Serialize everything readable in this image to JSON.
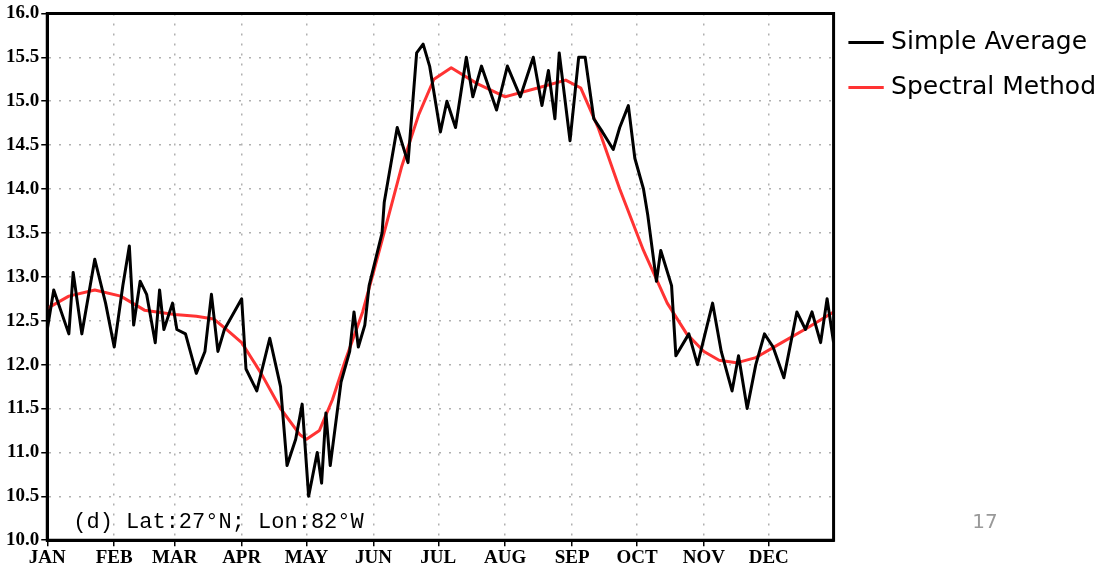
{
  "chart_data": {
    "type": "line",
    "xlim": [
      "--01-01",
      "--12-31"
    ],
    "xticks": [
      {
        "value": "--01-01",
        "label": "JAN"
      },
      {
        "value": "--02-01",
        "label": "FEB"
      },
      {
        "value": "--03-01",
        "label": "MAR"
      },
      {
        "value": "--04-01",
        "label": "APR"
      },
      {
        "value": "--05-01",
        "label": "MAY"
      },
      {
        "value": "--06-01",
        "label": "JUN"
      },
      {
        "value": "--07-01",
        "label": "JUL"
      },
      {
        "value": "--08-01",
        "label": "AUG"
      },
      {
        "value": "--09-01",
        "label": "SEP"
      },
      {
        "value": "--10-01",
        "label": "OCT"
      },
      {
        "value": "--11-01",
        "label": "NOV"
      },
      {
        "value": "--12-01",
        "label": "DEC"
      }
    ],
    "ylim": [
      10,
      16
    ],
    "yticks": [
      {
        "value": 10,
        "label": "10.0"
      },
      {
        "value": 10.5,
        "label": "10.5"
      },
      {
        "value": 11,
        "label": "11.0"
      },
      {
        "value": 11.5,
        "label": "11.5"
      },
      {
        "value": 12,
        "label": "12.0"
      },
      {
        "value": 12.5,
        "label": "12.5"
      },
      {
        "value": 13,
        "label": "13.0"
      },
      {
        "value": 13.5,
        "label": "13.5"
      },
      {
        "value": 14,
        "label": "14.0"
      },
      {
        "value": 14.5,
        "label": "14.5"
      },
      {
        "value": 15,
        "label": "15.0"
      },
      {
        "value": 15.5,
        "label": "15.5"
      },
      {
        "value": 16,
        "label": "16.0"
      }
    ],
    "grid": true,
    "legend": "right",
    "marker": "none",
    "line_style": "solid",
    "annotations": [
      "(d) Lat:27°N; Lon:82°W",
      "17"
    ],
    "series": [
      {
        "name": "Simple Average",
        "color": "#000000",
        "x": [
          "--01-01",
          "--01-04",
          "--01-11",
          "--01-13",
          "--01-17",
          "--01-23",
          "--01-28",
          "--02-01",
          "--02-05",
          "--02-08",
          "--02-10",
          "--02-13",
          "--02-16",
          "--02-20",
          "--02-22",
          "--02-24",
          "--02-28",
          "--03-02",
          "--03-06",
          "--03-11",
          "--03-15",
          "--03-18",
          "--03-21",
          "--03-24",
          "--04-01",
          "--04-03",
          "--04-08",
          "--04-14",
          "--04-19",
          "--04-22",
          "--04-26",
          "--04-29",
          "--05-02",
          "--05-06",
          "--05-08",
          "--05-10",
          "--05-12",
          "--05-17",
          "--05-21",
          "--05-23",
          "--05-25",
          "--05-28",
          "--05-30",
          "--06-05",
          "--06-06",
          "--06-12",
          "--06-17",
          "--06-21",
          "--06-24",
          "--06-27",
          "--07-02",
          "--07-05",
          "--07-09",
          "--07-14",
          "--07-17",
          "--07-21",
          "--07-28",
          "--08-02",
          "--08-08",
          "--08-14",
          "--08-18",
          "--08-21",
          "--08-24",
          "--08-26",
          "--08-31",
          "--09-04",
          "--09-07",
          "--09-11",
          "--09-15",
          "--09-20",
          "--09-23",
          "--09-27",
          "--09-30",
          "--10-04",
          "--10-06",
          "--10-10",
          "--10-12",
          "--10-17",
          "--10-19",
          "--10-25",
          "--10-29",
          "--11-05",
          "--11-09",
          "--11-14",
          "--11-17",
          "--11-21",
          "--11-25",
          "--11-29",
          "--12-03",
          "--12-08",
          "--12-14",
          "--12-18",
          "--12-21",
          "--12-25",
          "--12-28",
          "--12-31"
        ],
        "values": [
          12.4,
          12.85,
          12.35,
          13.05,
          12.35,
          13.2,
          12.7,
          12.2,
          12.9,
          13.35,
          12.45,
          12.95,
          12.8,
          12.25,
          12.85,
          12.4,
          12.7,
          12.4,
          12.35,
          11.9,
          12.15,
          12.8,
          12.15,
          12.4,
          12.75,
          11.95,
          11.7,
          12.3,
          11.75,
          10.85,
          11.15,
          11.55,
          10.5,
          11.0,
          10.65,
          11.45,
          10.85,
          11.8,
          12.15,
          12.6,
          12.2,
          12.45,
          12.9,
          13.5,
          13.85,
          14.7,
          14.3,
          15.55,
          15.65,
          15.4,
          14.65,
          15.0,
          14.7,
          15.5,
          15.05,
          15.4,
          14.9,
          15.4,
          15.05,
          15.5,
          14.95,
          15.35,
          14.8,
          15.55,
          14.55,
          15.5,
          15.5,
          14.8,
          14.65,
          14.45,
          14.7,
          14.95,
          14.35,
          14.0,
          13.7,
          12.95,
          13.3,
          12.9,
          12.1,
          12.35,
          12.0,
          12.7,
          12.15,
          11.7,
          12.1,
          11.5,
          12.0,
          12.35,
          12.2,
          11.85,
          12.6,
          12.4,
          12.6,
          12.25,
          12.75,
          12.25
        ]
      },
      {
        "name": "Spectral Method",
        "color": "#ff3333",
        "x": [
          "--01-01",
          "--01-11",
          "--01-23",
          "--02-04",
          "--02-15",
          "--03-01",
          "--03-11",
          "--03-19",
          "--03-24",
          "--04-01",
          "--04-10",
          "--04-19",
          "--04-28",
          "--05-01",
          "--05-07",
          "--05-13",
          "--05-19",
          "--05-27",
          "--06-01",
          "--06-07",
          "--06-14",
          "--06-22",
          "--06-29",
          "--07-07",
          "--07-19",
          "--08-01",
          "--08-16",
          "--08-29",
          "--09-05",
          "--09-13",
          "--09-23",
          "--10-04",
          "--10-15",
          "--10-24",
          "--11-01",
          "--11-08",
          "--11-16",
          "--11-25",
          "--12-07",
          "--12-19",
          "--12-31"
        ],
        "values": [
          12.64,
          12.78,
          12.85,
          12.78,
          12.62,
          12.57,
          12.55,
          12.52,
          12.42,
          12.25,
          11.9,
          11.5,
          11.2,
          11.15,
          11.25,
          11.6,
          12.05,
          12.6,
          13.05,
          13.6,
          14.25,
          14.85,
          15.25,
          15.38,
          15.2,
          15.05,
          15.15,
          15.24,
          15.15,
          14.7,
          14.0,
          13.3,
          12.7,
          12.35,
          12.15,
          12.05,
          12.02,
          12.08,
          12.25,
          12.42,
          12.6
        ]
      }
    ]
  }
}
